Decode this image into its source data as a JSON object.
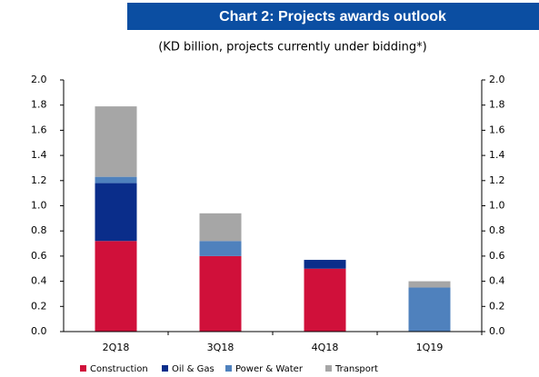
{
  "chart_data": {
    "type": "bar",
    "stacked": true,
    "title": "Chart 2: Projects awards outlook",
    "subtitle": "(KD billion, projects currently under bidding*)",
    "categories": [
      "2Q18",
      "3Q18",
      "4Q18",
      "1Q19"
    ],
    "series": [
      {
        "name": "Construction",
        "color": "#d0103a",
        "values": [
          0.72,
          0.6,
          0.5,
          0
        ]
      },
      {
        "name": "Oil & Gas",
        "color": "#0a2d8a",
        "values": [
          0.46,
          0,
          0.07,
          0
        ]
      },
      {
        "name": "Power & Water",
        "color": "#4f81bd",
        "values": [
          0.05,
          0.12,
          0,
          0.35
        ]
      },
      {
        "name": "Transport",
        "color": "#a6a6a6",
        "values": [
          0.56,
          0.22,
          0,
          0.05
        ]
      }
    ],
    "ylim": [
      0,
      2
    ],
    "yticks": [
      {
        "value": 0,
        "label": "0.0"
      },
      0.2,
      0.4,
      0.6,
      0.8,
      {
        "value": 1,
        "label": "1.0"
      },
      1.2,
      1.4,
      1.6,
      1.8,
      {
        "value": 2,
        "label": "2.0"
      }
    ],
    "y2lim": [
      0,
      2
    ],
    "y2ticks": [
      {
        "value": 0,
        "label": "0.0"
      },
      0.2,
      0.4,
      0.6,
      0.8,
      {
        "value": 1,
        "label": "1.0"
      },
      1.2,
      1.4,
      1.6,
      1.8,
      {
        "value": 2,
        "label": "2.0"
      }
    ],
    "legend": "bottom"
  }
}
